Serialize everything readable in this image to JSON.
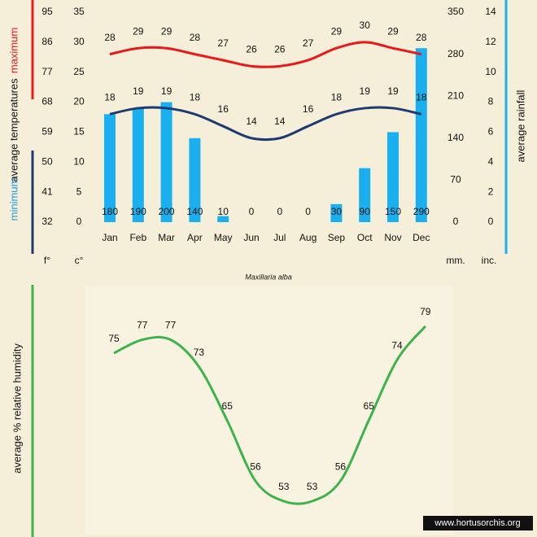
{
  "chart_data": [
    {
      "type": "combo",
      "title": "Maxillaria alba",
      "categories": [
        "Jan",
        "Feb",
        "Mar",
        "Apr",
        "May",
        "Jun",
        "Jul",
        "Aug",
        "Sep",
        "Oct",
        "Nov",
        "Dec"
      ],
      "ylabel": "average temperatures",
      "y_unit": "c°",
      "y_f_unit": "f°",
      "y2_unit": "mm.",
      "y3_unit": "inc.",
      "ylim": [
        0,
        35
      ],
      "yticks": [
        0,
        5,
        10,
        15,
        20,
        25,
        30,
        35
      ],
      "y_f_lim": [
        32,
        95
      ],
      "y_f_ticks": [
        32,
        41,
        50,
        59,
        68,
        77,
        86,
        95
      ],
      "y2lim": [
        0,
        350
      ],
      "y2ticks": [
        0,
        70,
        140,
        210,
        280,
        350
      ],
      "y3lim": [
        0,
        14
      ],
      "y3ticks": [
        0,
        2,
        4,
        6,
        8,
        10,
        12,
        14
      ],
      "series": [
        {
          "name": "maximum",
          "type": "line",
          "color": "#e8191b",
          "values": [
            28,
            29,
            29,
            28,
            27,
            26,
            26,
            27,
            29,
            30,
            29,
            28
          ]
        },
        {
          "name": "minimum",
          "type": "line",
          "color": "#1f3a6e",
          "values": [
            18,
            19,
            19,
            18,
            16,
            14,
            14,
            16,
            18,
            19,
            19,
            18
          ]
        },
        {
          "name": "average rainfall",
          "type": "bar",
          "axis": "y2",
          "color": "#1ab0ef",
          "values": [
            180,
            190,
            200,
            140,
            10,
            0,
            0,
            0,
            30,
            90,
            150,
            290
          ]
        }
      ]
    },
    {
      "type": "line",
      "ylabel": "average %  relative humidity",
      "color": "#3cb44a",
      "values": [
        75,
        77,
        77,
        73,
        65,
        56,
        53,
        53,
        56,
        65,
        74,
        79
      ]
    }
  ],
  "footer": "www.hortusorchis.org"
}
